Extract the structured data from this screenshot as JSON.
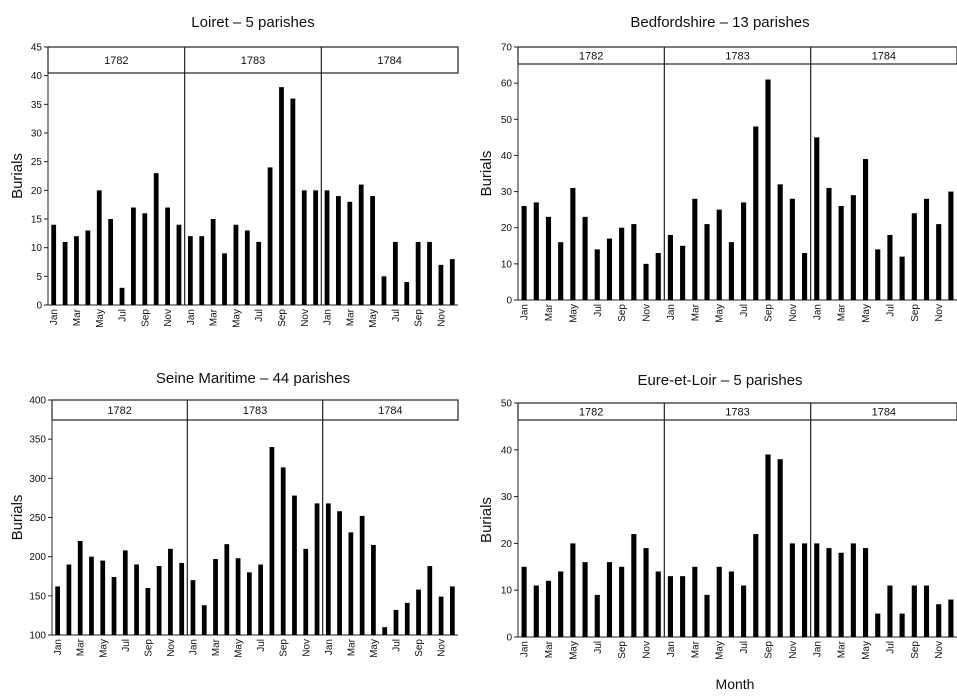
{
  "figure": {
    "xlabel": "Month"
  },
  "chart_data": [
    {
      "type": "bar",
      "title": "Loiret – 5 parishes",
      "ylabel": "Burials",
      "xlabel": "",
      "ylim": [
        0,
        45
      ],
      "yticks": [
        0,
        5,
        10,
        15,
        20,
        25,
        30,
        35,
        40,
        45
      ],
      "years": [
        "1782",
        "1783",
        "1784"
      ],
      "categories": [
        "Jan",
        "Feb",
        "Mar",
        "Apr",
        "May",
        "Jun",
        "Jul",
        "Aug",
        "Sep",
        "Oct",
        "Nov",
        "Dec",
        "Jan",
        "Feb",
        "Mar",
        "Apr",
        "May",
        "Jun",
        "Jul",
        "Aug",
        "Sep",
        "Oct",
        "Nov",
        "Dec",
        "Jan",
        "Feb",
        "Mar",
        "Apr",
        "May",
        "Jun",
        "Jul",
        "Aug",
        "Sep",
        "Oct",
        "Nov",
        "Dec"
      ],
      "tick_labels": [
        "Jan",
        "",
        "Mar",
        "",
        "May",
        "",
        "Jul",
        "",
        "Sep",
        "",
        "Nov",
        "",
        "Jan",
        "",
        "Mar",
        "",
        "May",
        "",
        "Jul",
        "",
        "Sep",
        "",
        "Nov",
        "",
        "Jan",
        "",
        "Mar",
        "",
        "May",
        "",
        "Jul",
        "",
        "Sep",
        "",
        "Nov",
        ""
      ],
      "values": [
        14,
        11,
        12,
        13,
        20,
        15,
        3,
        17,
        16,
        23,
        17,
        14,
        12,
        12,
        15,
        9,
        14,
        13,
        11,
        24,
        38,
        36,
        20,
        20,
        20,
        19,
        18,
        21,
        19,
        5,
        11,
        4,
        11,
        11,
        7,
        8
      ],
      "bar_color": "#000000",
      "grid": false
    },
    {
      "type": "bar",
      "title": "Bedfordshire – 13 parishes",
      "ylabel": "Burials",
      "xlabel": "",
      "ylim": [
        0,
        70
      ],
      "yticks": [
        0,
        10,
        20,
        30,
        40,
        50,
        60,
        70
      ],
      "years": [
        "1782",
        "1783",
        "1784"
      ],
      "categories": [
        "Jan",
        "Feb",
        "Mar",
        "Apr",
        "May",
        "Jun",
        "Jul",
        "Aug",
        "Sep",
        "Oct",
        "Nov",
        "Dec",
        "Jan",
        "Feb",
        "Mar",
        "Apr",
        "May",
        "Jun",
        "Jul",
        "Aug",
        "Sep",
        "Oct",
        "Nov",
        "Dec",
        "Jan",
        "Feb",
        "Mar",
        "Apr",
        "May",
        "Jun",
        "Jul",
        "Aug",
        "Sep",
        "Oct",
        "Nov",
        "Dec"
      ],
      "tick_labels": [
        "Jan",
        "",
        "Mar",
        "",
        "May",
        "",
        "Jul",
        "",
        "Sep",
        "",
        "Nov",
        "",
        "Jan",
        "",
        "Mar",
        "",
        "May",
        "",
        "Jul",
        "",
        "Sep",
        "",
        "Nov",
        "",
        "Jan",
        "",
        "Mar",
        "",
        "May",
        "",
        "Jul",
        "",
        "Sep",
        "",
        "Nov",
        ""
      ],
      "values": [
        26,
        27,
        23,
        16,
        31,
        23,
        14,
        17,
        20,
        21,
        10,
        13,
        18,
        15,
        28,
        21,
        25,
        16,
        27,
        48,
        61,
        32,
        28,
        13,
        45,
        31,
        26,
        29,
        39,
        14,
        18,
        12,
        24,
        28,
        21,
        30
      ],
      "bar_color": "#000000",
      "grid": false
    },
    {
      "type": "bar",
      "title": "Seine Maritime – 44 parishes",
      "ylabel": "Burials",
      "xlabel": "",
      "ylim": [
        100,
        400
      ],
      "yticks": [
        100,
        150,
        200,
        250,
        300,
        350,
        400
      ],
      "years": [
        "1782",
        "1783",
        "1784"
      ],
      "categories": [
        "Jan",
        "Feb",
        "Mar",
        "Apr",
        "May",
        "Jun",
        "Jul",
        "Aug",
        "Sep",
        "Oct",
        "Nov",
        "Dec",
        "Jan",
        "Feb",
        "Mar",
        "Apr",
        "May",
        "Jun",
        "Jul",
        "Aug",
        "Sep",
        "Oct",
        "Nov",
        "Dec",
        "Jan",
        "Feb",
        "Mar",
        "Apr",
        "May",
        "Jun",
        "Jul",
        "Aug",
        "Sep",
        "Oct",
        "Nov",
        "Dec"
      ],
      "tick_labels": [
        "Jan",
        "",
        "Mar",
        "",
        "May",
        "",
        "Jul",
        "",
        "Sep",
        "",
        "Nov",
        "",
        "Jan",
        "",
        "Mar",
        "",
        "May",
        "",
        "Jul",
        "",
        "Sep",
        "",
        "Nov",
        "",
        "Jan",
        "",
        "Mar",
        "",
        "May",
        "",
        "Jul",
        "",
        "Sep",
        "",
        "Nov",
        ""
      ],
      "values": [
        162,
        190,
        220,
        200,
        195,
        174,
        208,
        190,
        160,
        188,
        210,
        192,
        170,
        138,
        197,
        216,
        198,
        180,
        190,
        340,
        314,
        278,
        210,
        268,
        268,
        258,
        231,
        252,
        215,
        110,
        132,
        141,
        158,
        188,
        149,
        162
      ],
      "bar_color": "#000000",
      "grid": false
    },
    {
      "type": "bar",
      "title": "Eure-et-Loir – 5 parishes",
      "ylabel": "Burials",
      "xlabel": "",
      "ylim": [
        0,
        50
      ],
      "yticks": [
        0,
        10,
        20,
        30,
        40,
        50
      ],
      "years": [
        "1782",
        "1783",
        "1784"
      ],
      "categories": [
        "Jan",
        "Feb",
        "Mar",
        "Apr",
        "May",
        "Jun",
        "Jul",
        "Aug",
        "Sep",
        "Oct",
        "Nov",
        "Dec",
        "Jan",
        "Feb",
        "Mar",
        "Apr",
        "May",
        "Jun",
        "Jul",
        "Aug",
        "Sep",
        "Oct",
        "Nov",
        "Dec",
        "Jan",
        "Feb",
        "Mar",
        "Apr",
        "May",
        "Jun",
        "Jul",
        "Aug",
        "Sep",
        "Oct",
        "Nov",
        "Dec"
      ],
      "tick_labels": [
        "Jan",
        "",
        "Mar",
        "",
        "May",
        "",
        "Jul",
        "",
        "Sep",
        "",
        "Nov",
        "",
        "Jan",
        "",
        "Mar",
        "",
        "May",
        "",
        "Jul",
        "",
        "Sep",
        "",
        "Nov",
        "",
        "Jan",
        "",
        "Mar",
        "",
        "May",
        "",
        "Jul",
        "",
        "Sep",
        "",
        "Nov",
        ""
      ],
      "values": [
        15,
        11,
        12,
        14,
        20,
        16,
        9,
        16,
        15,
        22,
        19,
        14,
        13,
        13,
        15,
        9,
        15,
        14,
        11,
        22,
        39,
        38,
        20,
        20,
        20,
        19,
        18,
        20,
        19,
        5,
        11,
        5,
        11,
        11,
        7,
        8
      ],
      "bar_color": "#000000",
      "grid": false
    }
  ]
}
